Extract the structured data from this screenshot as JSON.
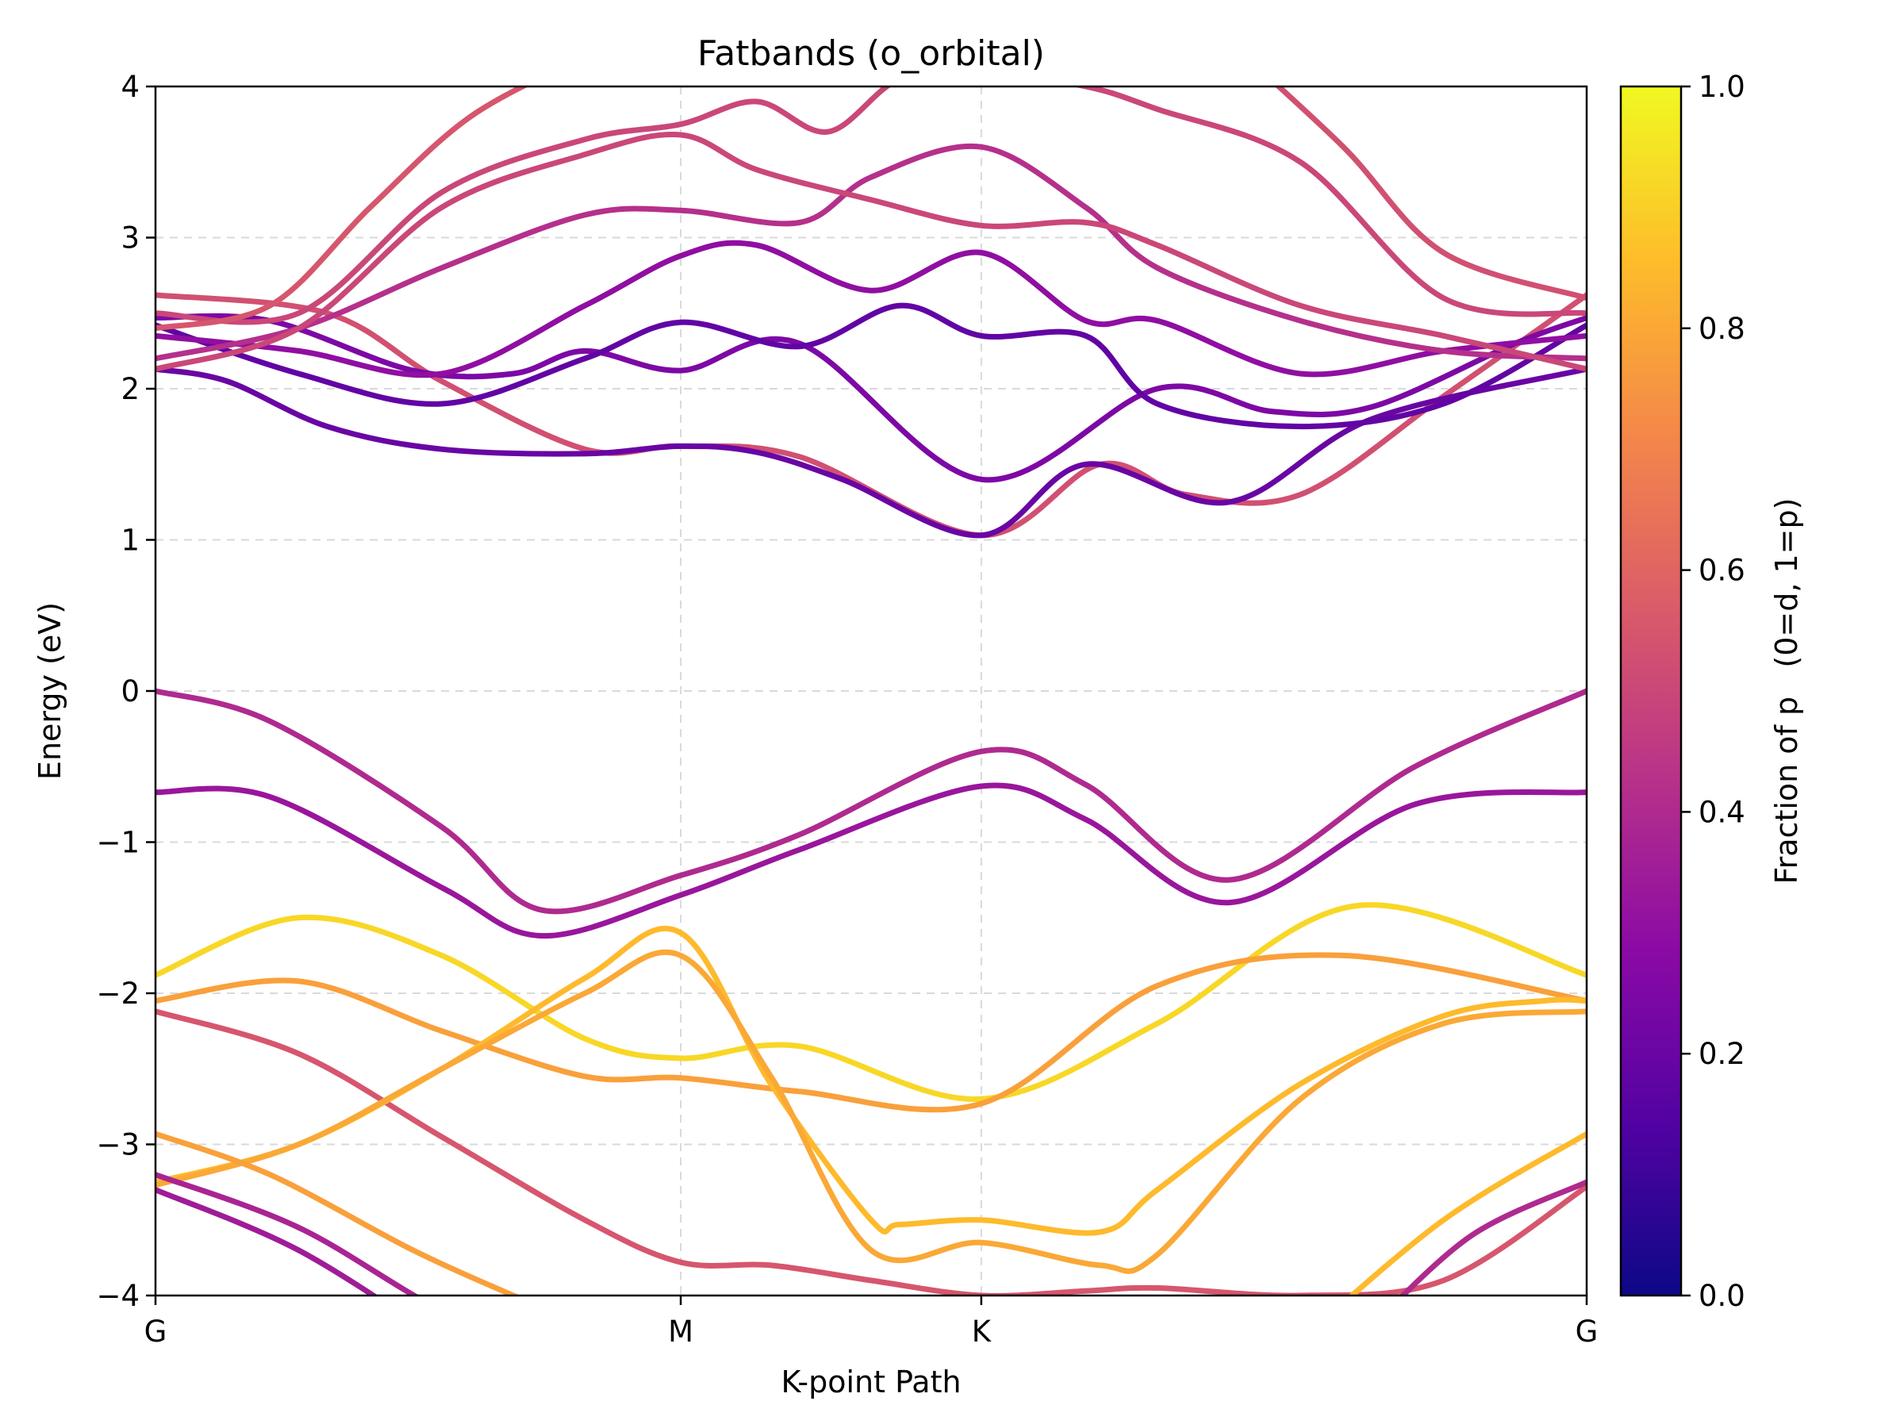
{
  "chart_data": {
    "type": "line",
    "title": "Fatbands (o_orbital)",
    "xlabel": "K-point Path",
    "ylabel": "Energy (eV)",
    "ylim": [
      -4,
      4
    ],
    "yticks": [
      -4,
      -3,
      -2,
      -1,
      0,
      1,
      2,
      3,
      4
    ],
    "ytick_labels": [
      "−4",
      "−3",
      "−2",
      "−1",
      "0",
      "1",
      "2",
      "3",
      "4"
    ],
    "xlim": [
      0,
      1
    ],
    "xticks": [
      {
        "label": "G",
        "pos": 0
      },
      {
        "label": "M",
        "pos": 0.367
      },
      {
        "label": "K",
        "pos": 0.577
      },
      {
        "label": "G",
        "pos": 1
      }
    ],
    "grid": true,
    "colormap": "plasma",
    "colors": [
      "#0d0887",
      "#5302a3",
      "#8b0aa5",
      "#b83289",
      "#db5c68",
      "#f48849",
      "#febd2a",
      "#f0f921"
    ],
    "colorbar": {
      "label": "Fraction of p   (0=d, 1=p)",
      "range": [
        0,
        1
      ],
      "ticks": [
        "0.0",
        "0.2",
        "0.4",
        "0.6",
        "0.8",
        "1.0"
      ]
    },
    "series": [
      {
        "x": [
          0,
          0.08,
          0.2,
          0.27,
          0.367,
          0.45,
          0.577,
          0.65,
          0.75,
          0.88,
          1
        ],
        "y": [
          0,
          -0.2,
          -0.9,
          -1.45,
          -1.22,
          -0.95,
          -0.4,
          -0.62,
          -1.25,
          -0.5,
          0
        ],
        "p": 0.4
      },
      {
        "x": [
          0,
          0.08,
          0.2,
          0.27,
          0.367,
          0.45,
          0.577,
          0.65,
          0.75,
          0.88,
          1
        ],
        "y": [
          -0.67,
          -0.7,
          -1.3,
          -1.62,
          -1.35,
          -1.05,
          -0.63,
          -0.85,
          -1.4,
          -0.75,
          -0.67
        ],
        "p": 0.33
      },
      {
        "x": [
          0,
          0.1,
          0.2,
          0.3,
          0.367,
          0.45,
          0.577,
          0.7,
          0.84,
          1
        ],
        "y": [
          -1.88,
          -1.5,
          -1.75,
          -2.3,
          -2.43,
          -2.35,
          -2.7,
          -2.2,
          -1.42,
          -1.88
        ],
        "p": 0.92
      },
      {
        "x": [
          0,
          0.1,
          0.2,
          0.3,
          0.367,
          0.45,
          0.577,
          0.7,
          0.83,
          1
        ],
        "y": [
          -2.05,
          -1.92,
          -2.25,
          -2.55,
          -2.56,
          -2.65,
          -2.73,
          -1.95,
          -1.75,
          -2.05
        ],
        "p": 0.78
      },
      {
        "x": [
          0,
          0.1,
          0.2,
          0.3,
          0.367,
          0.43,
          0.5,
          0.577,
          0.65,
          0.7,
          0.8,
          0.9,
          1
        ],
        "y": [
          -2.12,
          -2.4,
          -2.95,
          -3.5,
          -3.78,
          -3.8,
          -3.9,
          -4.0,
          -3.97,
          -3.95,
          -4.0,
          -3.9,
          -3.28
        ],
        "p": 0.55
      },
      {
        "x": [
          0,
          0.1,
          0.2,
          0.3,
          0.367,
          0.43,
          0.5,
          0.52,
          0.577,
          0.66,
          0.7,
          0.8,
          0.9,
          0.97,
          1
        ],
        "y": [
          -3.25,
          -3.0,
          -2.5,
          -1.9,
          -1.6,
          -2.6,
          -3.5,
          -3.53,
          -3.5,
          -3.58,
          -3.3,
          -2.6,
          -2.15,
          -2.05,
          -2.05
        ],
        "p": 0.85
      },
      {
        "x": [
          0,
          0.1,
          0.2,
          0.3,
          0.367,
          0.43,
          0.5,
          0.577,
          0.66,
          0.7,
          0.8,
          0.9,
          1
        ],
        "y": [
          -3.27,
          -3.0,
          -2.5,
          -2.0,
          -1.75,
          -2.55,
          -3.7,
          -3.65,
          -3.8,
          -3.73,
          -2.7,
          -2.2,
          -2.12
        ],
        "p": 0.8
      },
      {
        "x": [
          0,
          0.08,
          0.18,
          0.25,
          0.3
        ],
        "y": [
          -2.93,
          -3.2,
          -3.7,
          -4.0,
          -4.2
        ],
        "p": 0.78
      },
      {
        "x": [
          0,
          0.1,
          0.2,
          0.3
        ],
        "y": [
          -3.2,
          -3.55,
          -4.1,
          -4.5
        ],
        "p": 0.38
      },
      {
        "x": [
          0,
          0.1,
          0.2
        ],
        "y": [
          -3.3,
          -3.7,
          -4.3
        ],
        "p": 0.35
      },
      {
        "x": [
          0.85,
          0.92,
          1
        ],
        "y": [
          -4.2,
          -3.6,
          -3.25
        ],
        "p": 0.4
      },
      {
        "x": [
          0.8,
          0.9,
          1
        ],
        "y": [
          -4.3,
          -3.5,
          -2.93
        ],
        "p": 0.85
      },
      {
        "x": [
          0,
          0.12,
          0.2,
          0.3,
          0.367,
          0.45,
          0.577,
          0.66,
          0.72,
          0.8,
          0.9,
          1
        ],
        "y": [
          2.62,
          2.5,
          2.05,
          1.6,
          1.62,
          1.55,
          1.03,
          1.5,
          1.3,
          1.3,
          1.95,
          2.62
        ],
        "p": 0.53
      },
      {
        "x": [
          0,
          0.05,
          0.12,
          0.2,
          0.3,
          0.367,
          0.42,
          0.48,
          0.577,
          0.65,
          0.75,
          0.85,
          1
        ],
        "y": [
          2.13,
          2.05,
          1.75,
          1.6,
          1.57,
          1.62,
          1.58,
          1.4,
          1.03,
          1.5,
          1.25,
          1.8,
          2.13
        ],
        "p": 0.2
      },
      {
        "x": [
          0,
          0.08,
          0.18,
          0.25,
          0.3,
          0.367,
          0.45,
          0.577,
          0.7,
          0.78,
          0.85,
          0.95,
          1
        ],
        "y": [
          2.47,
          2.45,
          2.12,
          2.1,
          2.25,
          2.12,
          2.3,
          1.4,
          2.0,
          1.85,
          1.88,
          2.3,
          2.47
        ],
        "p": 0.25
      },
      {
        "x": [
          0,
          0.1,
          0.2,
          0.3,
          0.367,
          0.45,
          0.52,
          0.577,
          0.65,
          0.7,
          0.8,
          0.9,
          1
        ],
        "y": [
          2.42,
          2.1,
          1.9,
          2.2,
          2.44,
          2.28,
          2.55,
          2.35,
          2.35,
          1.9,
          1.75,
          1.9,
          2.42
        ],
        "p": 0.18
      },
      {
        "x": [
          0,
          0.1,
          0.2,
          0.3,
          0.367,
          0.42,
          0.5,
          0.577,
          0.65,
          0.7,
          0.8,
          0.9,
          1
        ],
        "y": [
          2.35,
          2.25,
          2.1,
          2.55,
          2.88,
          2.95,
          2.65,
          2.9,
          2.45,
          2.45,
          2.1,
          2.25,
          2.35
        ],
        "p": 0.3
      },
      {
        "x": [
          0,
          0.1,
          0.2,
          0.3,
          0.367,
          0.45,
          0.5,
          0.577,
          0.65,
          0.7,
          0.8,
          0.9,
          1
        ],
        "y": [
          2.2,
          2.4,
          2.8,
          3.15,
          3.18,
          3.1,
          3.4,
          3.6,
          3.2,
          2.8,
          2.45,
          2.25,
          2.2
        ],
        "p": 0.42
      },
      {
        "x": [
          0,
          0.1,
          0.2,
          0.3,
          0.367,
          0.42,
          0.5,
          0.577,
          0.65,
          0.7,
          0.8,
          0.9,
          1
        ],
        "y": [
          2.13,
          2.4,
          3.2,
          3.55,
          3.68,
          3.45,
          3.25,
          3.08,
          3.1,
          2.95,
          2.55,
          2.35,
          2.13
        ],
        "p": 0.5
      },
      {
        "x": [
          0,
          0.1,
          0.2,
          0.3,
          0.367,
          0.42,
          0.47,
          0.52,
          0.577,
          0.65,
          0.7,
          0.8,
          0.9,
          1
        ],
        "y": [
          2.5,
          2.5,
          3.3,
          3.65,
          3.75,
          3.9,
          3.7,
          4.05,
          4.1,
          4.0,
          3.85,
          3.5,
          2.6,
          2.5
        ],
        "p": 0.5
      },
      {
        "x": [
          0,
          0.08,
          0.15,
          0.22,
          0.3
        ],
        "y": [
          2.4,
          2.55,
          3.2,
          3.8,
          4.2
        ],
        "p": 0.55
      },
      {
        "x": [
          0.75,
          0.83,
          0.9,
          1
        ],
        "y": [
          4.3,
          3.6,
          2.9,
          2.6
        ],
        "p": 0.53
      }
    ]
  }
}
